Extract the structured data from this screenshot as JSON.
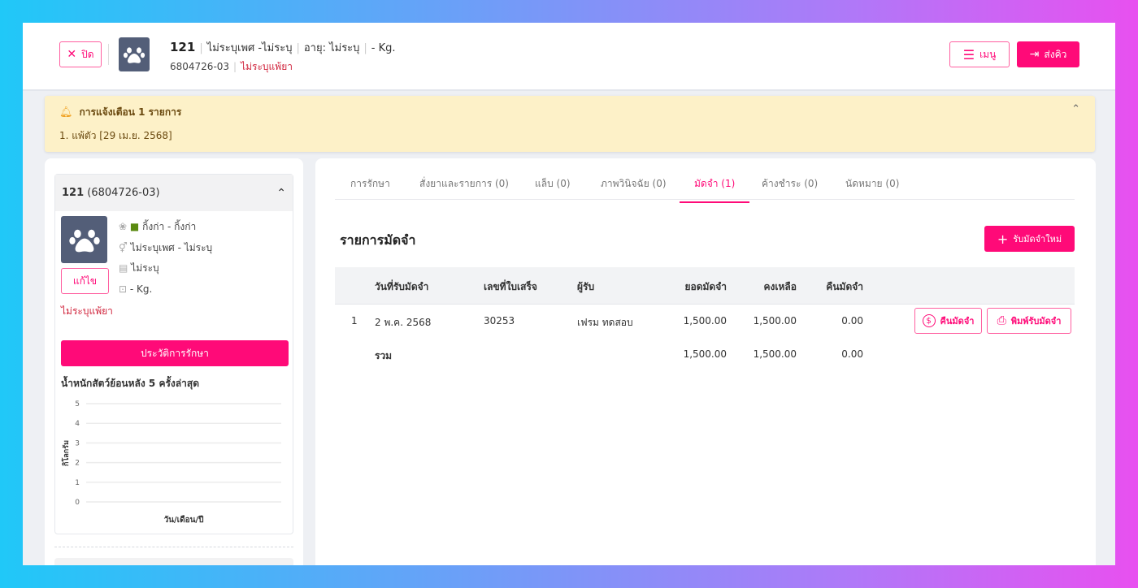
{
  "header": {
    "close_label": "ปิด",
    "pet_id": "121",
    "gender": "ไม่ระบุเพศ -ไม่ระบุ",
    "age": "อายุ: ไม่ระบุ",
    "weight": "- Kg.",
    "owner_code": "6804726-03",
    "allergy": "ไม่ระบุแพ้ยา",
    "menu_label": "เมนู",
    "send_queue_label": "ส่งคิว"
  },
  "alert": {
    "title": "การแจ้งเตือน 1 รายการ",
    "items": [
      "1. แพ้ตัว [29 เม.ย. 2568]"
    ]
  },
  "pet_card": {
    "title_id": "121",
    "title_code": "(6804726-03)",
    "species": "กิ้งก่า - กิ้งก่า",
    "gender": "ไม่ระบุเพศ - ไม่ระบุ",
    "birthday": "ไม่ระบุ",
    "weight": "- Kg.",
    "edit_label": "แก้ไข",
    "allergy": "ไม่ระบุแพ้ยา",
    "history_label": "ประวัติการรักษา",
    "weight_chart_title": "น้ำหนักสัตว์ย้อนหลัง 5 ครั้งล่าสุด"
  },
  "chart_data": {
    "type": "line",
    "title": "น้ำหนักสัตว์ย้อนหลัง 5 ครั้งล่าสุด",
    "xlabel": "วัน/เดือน/ปี",
    "ylabel": "กิโลกรัม",
    "ylim": [
      0,
      5
    ],
    "yticks": [
      "0",
      "1",
      "2",
      "3",
      "4",
      "5"
    ],
    "grid": true,
    "series": []
  },
  "tabs": [
    {
      "label": "การรักษา",
      "active": false
    },
    {
      "label": "สั่งยาและรายการ (0)",
      "active": false
    },
    {
      "label": "แล็บ (0)",
      "active": false
    },
    {
      "label": "ภาพวินิจฉัย (0)",
      "active": false
    },
    {
      "label": "มัดจำ (1)",
      "active": true
    },
    {
      "label": "ค้างชำระ (0)",
      "active": false
    },
    {
      "label": "นัดหมาย (0)",
      "active": false
    }
  ],
  "deposit": {
    "title": "รายการมัดจำ",
    "new_label": "รับมัดจำใหม่",
    "columns": [
      "วันที่รับมัดจำ",
      "เลขที่ใบเสร็จ",
      "ผู้รับ",
      "ยอดมัดจำ",
      "คงเหลือ",
      "คืนมัดจำ"
    ],
    "rows": [
      {
        "no": "1",
        "date": "2 พ.ค. 2568",
        "receipt": "30253",
        "receiver": "เฟรม ทดสอบ",
        "amount": "1,500.00",
        "balance": "1,500.00",
        "refund": "0.00",
        "refund_btn": "คืนมัดจำ",
        "print_btn": "พิมพ์รับมัดจำ"
      }
    ],
    "total": {
      "label": "รวม",
      "amount": "1,500.00",
      "balance": "1,500.00",
      "refund": "0.00"
    }
  },
  "colors": {
    "accent": "#ff0a78",
    "alert_bg": "#fdf1c8",
    "allergy": "#d0243c"
  }
}
